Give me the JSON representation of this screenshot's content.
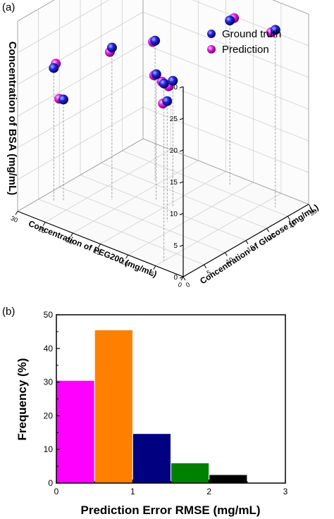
{
  "figure": {
    "panel_a_label": "(a)",
    "panel_b_label": "(b)"
  },
  "chart_data": [
    {
      "type": "scatter",
      "projection": "3d",
      "title": "",
      "xlabel": "Concentration of PEG200 (mg/mL)",
      "ylabel": "Concentration of Glucose (mg/mL)",
      "zlabel": "Concentration of BSA (mg/mL)",
      "xlim": [
        0,
        30
      ],
      "ylim": [
        0,
        30
      ],
      "zlim": [
        0,
        30
      ],
      "x_ticks": [
        "0",
        "5",
        "10",
        "15",
        "20",
        "25",
        "30"
      ],
      "y_ticks": [
        "0",
        "5",
        "10",
        "15",
        "20",
        "25",
        "30"
      ],
      "z_ticks": [
        "0",
        "5",
        "10",
        "15",
        "20",
        "25",
        "30"
      ],
      "grid": true,
      "legend_position": "top-right",
      "series": [
        {
          "name": "Ground truth",
          "color": "#1a1acc",
          "points": [
            {
              "x": 5,
              "y": 2,
              "z": 28
            },
            {
              "x": 3,
              "y": 26,
              "z": 28
            },
            {
              "x": 12,
              "y": 27,
              "z": 26
            },
            {
              "x": 22,
              "y": 12,
              "z": 24
            },
            {
              "x": 12,
              "y": 12,
              "z": 19
            },
            {
              "x": 14,
              "y": 16,
              "z": 20
            },
            {
              "x": 17,
              "y": 16,
              "z": 20
            },
            {
              "x": 21,
              "y": 21,
              "z": 22
            },
            {
              "x": 28,
              "y": 6,
              "z": 21
            },
            {
              "x": 27,
              "y": 7,
              "z": 16
            }
          ]
        },
        {
          "name": "Prediction",
          "color": "#e01ee0",
          "points": [
            {
              "x": 5,
              "y": 1.5,
              "z": 28.5
            },
            {
              "x": 3,
              "y": 25,
              "z": 28
            },
            {
              "x": 12,
              "y": 28,
              "z": 26
            },
            {
              "x": 22,
              "y": 11.5,
              "z": 23.5
            },
            {
              "x": 12,
              "y": 11,
              "z": 19
            },
            {
              "x": 14,
              "y": 15,
              "z": 19.5
            },
            {
              "x": 17,
              "y": 15.5,
              "z": 20
            },
            {
              "x": 21,
              "y": 20.5,
              "z": 22
            },
            {
              "x": 28,
              "y": 6.5,
              "z": 21.5
            },
            {
              "x": 27,
              "y": 6,
              "z": 16.5
            }
          ]
        }
      ]
    },
    {
      "type": "bar",
      "title": "",
      "xlabel": "Prediction Error RMSE (mg/mL)",
      "ylabel": "Frequency (%)",
      "xlim": [
        0,
        3
      ],
      "ylim": [
        0,
        50
      ],
      "x_ticks": [
        "0",
        "1",
        "2",
        "3"
      ],
      "y_ticks": [
        "0",
        "10",
        "20",
        "30",
        "40",
        "50"
      ],
      "bins": [
        {
          "x0": 0.0,
          "x1": 0.5,
          "value": 30.5,
          "color": "#ff00ff"
        },
        {
          "x0": 0.5,
          "x1": 1.0,
          "value": 45.5,
          "color": "#ff8000"
        },
        {
          "x0": 1.0,
          "x1": 1.5,
          "value": 14.7,
          "color": "#000080"
        },
        {
          "x0": 1.5,
          "x1": 2.0,
          "value": 6.0,
          "color": "#008000"
        },
        {
          "x0": 2.0,
          "x1": 2.5,
          "value": 2.5,
          "color": "#000000"
        }
      ]
    }
  ]
}
